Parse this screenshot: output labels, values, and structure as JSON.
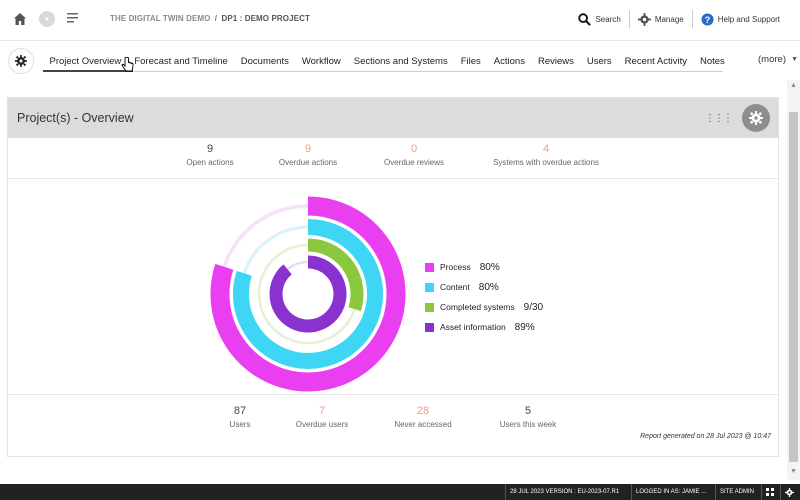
{
  "topbar": {
    "org": "THE DIGITAL TWIN DEMO",
    "sep": "/",
    "project": "DP1 : DEMO PROJECT",
    "search_label": "Search",
    "manage_label": "Manage",
    "help_label": "Help and Support"
  },
  "nav": {
    "tabs": [
      {
        "label": "Project Overview",
        "active": true
      },
      {
        "label": "Forecast and Timeline"
      },
      {
        "label": "Documents"
      },
      {
        "label": "Workflow"
      },
      {
        "label": "Sections and Systems"
      },
      {
        "label": "Files"
      },
      {
        "label": "Actions"
      },
      {
        "label": "Reviews"
      },
      {
        "label": "Users"
      },
      {
        "label": "Recent Activity"
      },
      {
        "label": "Notes"
      }
    ],
    "more_label": "(more)"
  },
  "panel": {
    "title": "Project(s) - Overview",
    "top_stats": [
      {
        "value": "9",
        "label": "Open actions",
        "warn": false
      },
      {
        "value": "9",
        "label": "Overdue actions",
        "warn": true
      },
      {
        "value": "0",
        "label": "Overdue reviews",
        "warn": true
      },
      {
        "value": "4",
        "label": "Systems with overdue actions",
        "warn": true
      }
    ],
    "bottom_stats": [
      {
        "value": "87",
        "label": "Users",
        "warn": false
      },
      {
        "value": "7",
        "label": "Overdue users",
        "warn": true
      },
      {
        "value": "28",
        "label": "Never accessed",
        "warn": true
      },
      {
        "value": "5",
        "label": "Users this week",
        "warn": false
      }
    ],
    "report": "Report generated on 28 Jul 2023 @ 10:47"
  },
  "chart_data": {
    "type": "radial-bar",
    "series": [
      {
        "name": "Process",
        "value_label": "80%",
        "fraction": 0.8,
        "color": "#ea3ff0"
      },
      {
        "name": "Content",
        "value_label": "80%",
        "fraction": 0.8,
        "color": "#3fd6f5"
      },
      {
        "name": "Completed systems",
        "value_label": "9/30",
        "fraction": 0.3,
        "color": "#8cc83f"
      },
      {
        "name": "Asset information",
        "value_label": "89%",
        "fraction": 0.89,
        "color": "#8a32d0"
      }
    ]
  },
  "bottombar": {
    "version": "28 JUL 2023 VERSION : EU-2023-07.R1",
    "logged": "LOGGED IN AS: JAMIE ...",
    "role": "SITE ADMIN"
  }
}
